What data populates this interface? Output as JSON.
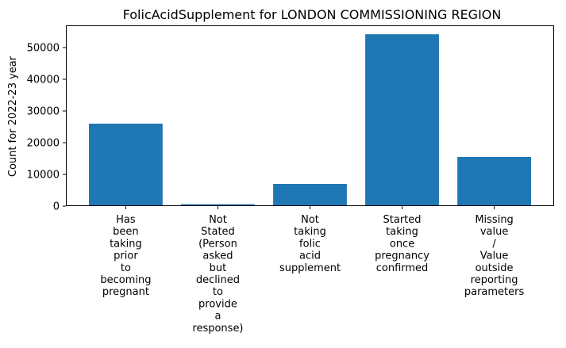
{
  "chart_data": {
    "type": "bar",
    "title": "FolicAcidSupplement for LONDON COMMISSIONING REGION",
    "xlabel": "",
    "ylabel": "Count for 2022-23 year",
    "categories": [
      [
        "Has",
        "been",
        "taking",
        "prior",
        "to",
        "becoming",
        "pregnant"
      ],
      [
        "Not",
        "Stated",
        "(Person",
        "asked",
        "but",
        "declined",
        "to",
        "provide",
        "a",
        "response)"
      ],
      [
        "Not",
        "taking",
        "folic",
        "acid",
        "supplement"
      ],
      [
        "Started",
        "taking",
        "once",
        "pregnancy",
        "confirmed"
      ],
      [
        "Missing",
        "value",
        "/",
        "Value",
        "outside",
        "reporting",
        "parameters"
      ]
    ],
    "values": [
      26000,
      600,
      7000,
      54200,
      15500
    ],
    "ylim": [
      0,
      57000
    ],
    "yticks": [
      0,
      10000,
      20000,
      30000,
      40000,
      50000
    ],
    "bar_color": "#1f77b4",
    "grid": false,
    "legend": "none"
  }
}
